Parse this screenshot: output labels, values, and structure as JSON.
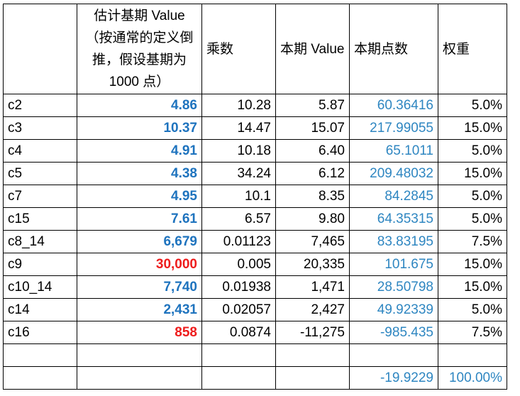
{
  "headers": [
    "",
    "估计基期 Value（按通常的定义倒推，假设基期为 1000 点）",
    "乘数",
    "本期 Value",
    "本期点数",
    "权重"
  ],
  "rows": [
    {
      "name": "c2",
      "base": "4.86",
      "base_color": "blue",
      "mult": "10.28",
      "value": "5.87",
      "points": "60.36416",
      "weight": "5.0%"
    },
    {
      "name": "c3",
      "base": "10.37",
      "base_color": "blue",
      "mult": "14.47",
      "value": "15.07",
      "points": "217.99055",
      "weight": "15.0%"
    },
    {
      "name": "c4",
      "base": "4.91",
      "base_color": "blue",
      "mult": "10.18",
      "value": "6.40",
      "points": "65.1011",
      "weight": "5.0%"
    },
    {
      "name": "c5",
      "base": "4.38",
      "base_color": "blue",
      "mult": "34.24",
      "value": "6.12",
      "points": "209.48032",
      "weight": "15.0%"
    },
    {
      "name": "c7",
      "base": "4.95",
      "base_color": "blue",
      "mult": "10.1",
      "value": "8.35",
      "points": "84.2845",
      "weight": "5.0%"
    },
    {
      "name": "c15",
      "base": "7.61",
      "base_color": "blue",
      "mult": "6.57",
      "value": "9.80",
      "points": "64.35315",
      "weight": "5.0%"
    },
    {
      "name": "c8_14",
      "base": "6,679",
      "base_color": "blue",
      "mult": "0.01123",
      "value": "7,465",
      "points": "83.83195",
      "weight": "7.5%"
    },
    {
      "name": "c9",
      "base": "30,000",
      "base_color": "red",
      "mult": "0.005",
      "value": "20,335",
      "points": "101.675",
      "weight": "15.0%"
    },
    {
      "name": "c10_14",
      "base": "7,740",
      "base_color": "blue",
      "mult": "0.01938",
      "value": "1,471",
      "points": "28.50798",
      "weight": "15.0%"
    },
    {
      "name": "c14",
      "base": "2,431",
      "base_color": "blue",
      "mult": "0.02057",
      "value": "2,427",
      "points": "49.92339",
      "weight": "5.0%"
    },
    {
      "name": "c16",
      "base": "858",
      "base_color": "red",
      "mult": "0.0874",
      "value": "-11,275",
      "points": "-985.435",
      "weight": "7.5%"
    },
    {
      "name": "",
      "base": "",
      "base_color": "blue",
      "mult": "",
      "value": "",
      "points": "",
      "weight": ""
    },
    {
      "name": "",
      "base": "",
      "base_color": "blue",
      "mult": "",
      "value": "",
      "points": "-19.9229",
      "weight": "100.00%",
      "total": true
    }
  ]
}
